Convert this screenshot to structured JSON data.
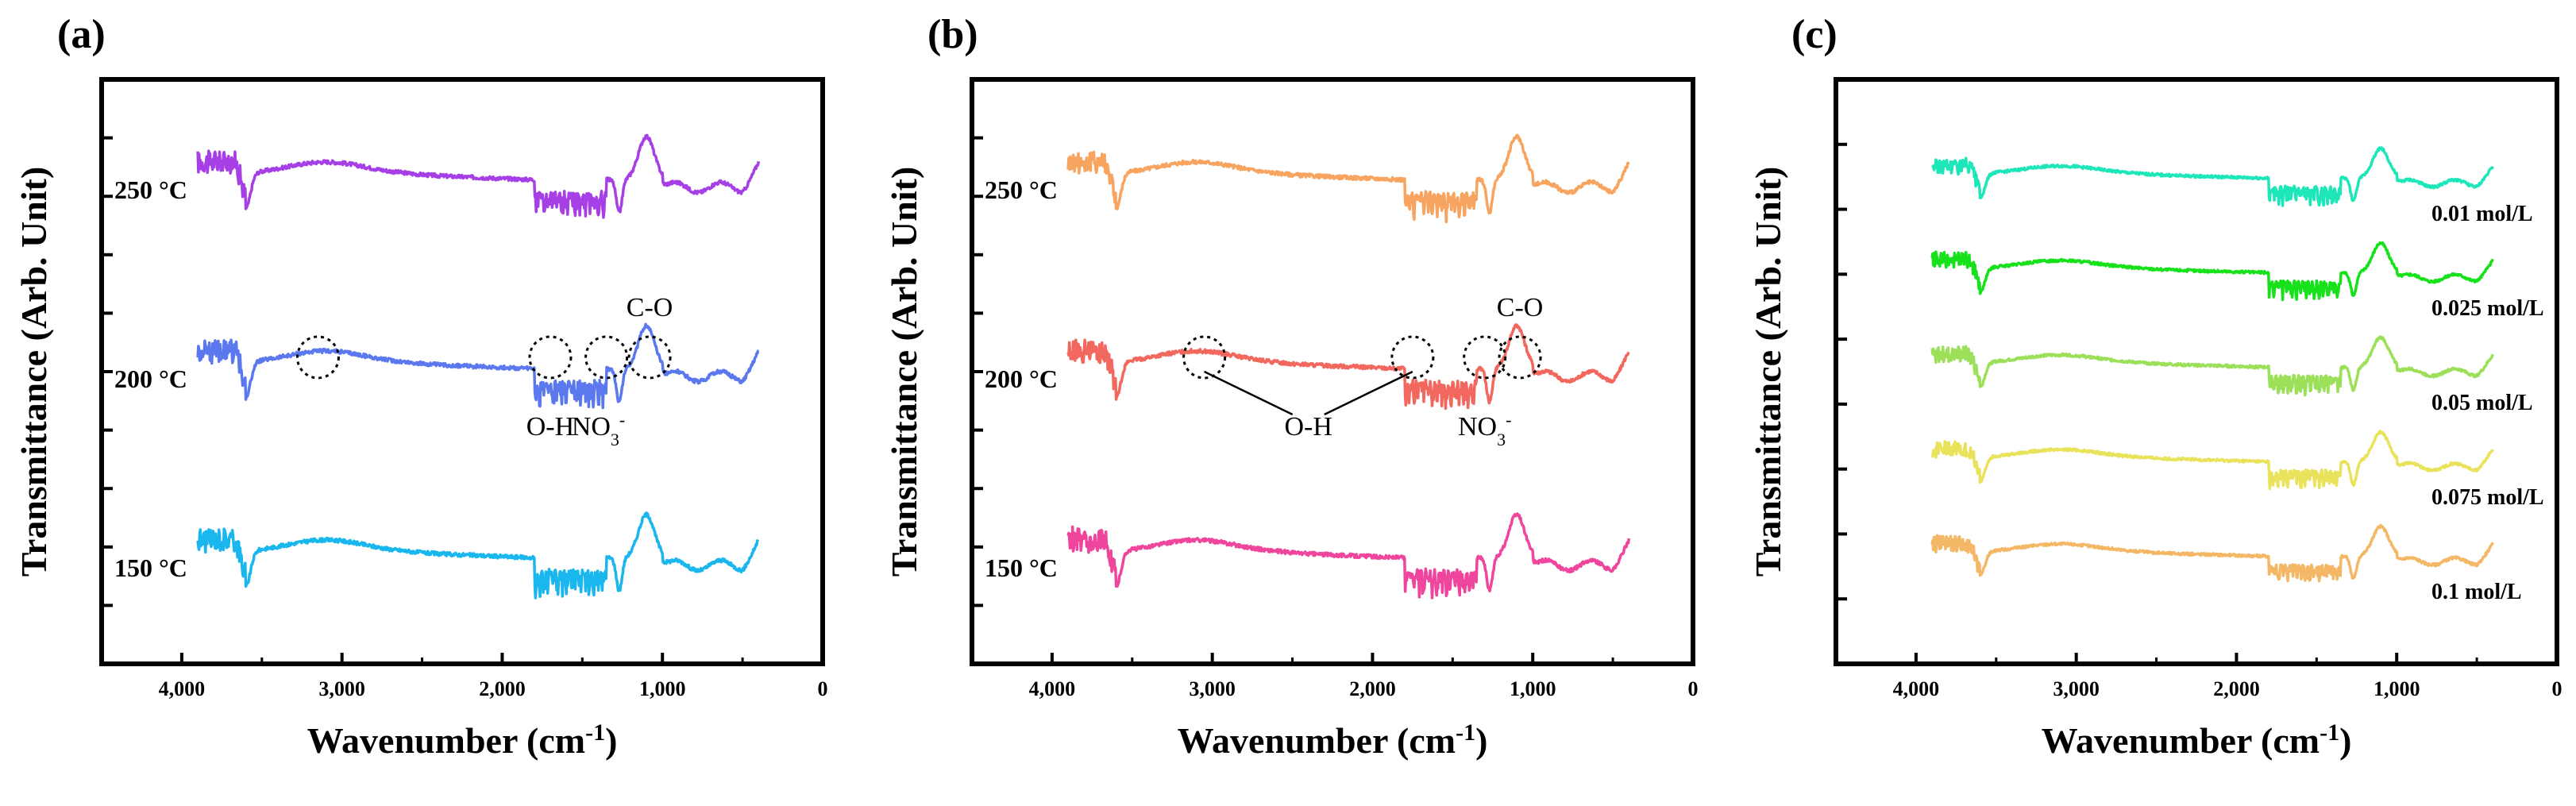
{
  "figure": {
    "description_labels": [
      "(a)",
      "(b)",
      "(c)"
    ]
  },
  "chart_data": [
    {
      "type": "line",
      "panel_label": "(a)",
      "xlabel": "Wavenumber (cm",
      "xlabel_sup": "-1",
      "xlabel_close": ")",
      "ylabel": "Transmittance (Arb. Unit)",
      "xlim": [
        4500,
        0
      ],
      "x_ticks": [
        4000,
        3000,
        2000,
        1000,
        0
      ],
      "x_tick_labels": [
        "4,000",
        "3,000",
        "2,000",
        "1,000",
        "0"
      ],
      "y_ticks_shown": true,
      "series": [
        {
          "name": "250 °C",
          "color": "#a63fe6",
          "offset": 2
        },
        {
          "name": "200 °C",
          "color": "#5b78ee",
          "offset": 1
        },
        {
          "name": "150 °C",
          "color": "#1ab7ee",
          "offset": 0
        }
      ],
      "annotations": [
        {
          "text": "C-O",
          "at_wavenumber": 1080,
          "series": "200 °C"
        },
        {
          "text": "O-H",
          "at_wavenumber": 1700,
          "series": "200 °C"
        },
        {
          "text": "NO",
          "sub": "3",
          "sup": "-",
          "at_wavenumber": 1400,
          "series": "200 °C"
        }
      ],
      "circled_bands": [
        {
          "wavenumber": 3150,
          "series": "200 °C"
        },
        {
          "wavenumber": 1700,
          "series": "200 °C"
        },
        {
          "wavenumber": 1350,
          "series": "200 °C"
        },
        {
          "wavenumber": 1080,
          "series": "200 °C"
        }
      ]
    },
    {
      "type": "line",
      "panel_label": "(b)",
      "xlabel": "Wavenumber (cm",
      "xlabel_sup": "-1",
      "xlabel_close": ")",
      "ylabel": "Transmittance (Arb. Unit)",
      "xlim": [
        4500,
        0
      ],
      "x_ticks": [
        4000,
        3000,
        2000,
        1000,
        0
      ],
      "x_tick_labels": [
        "4,000",
        "3,000",
        "2,000",
        "1,000",
        "0"
      ],
      "y_ticks_shown": true,
      "series": [
        {
          "name": "250 °C",
          "color": "#f7a460",
          "offset": 2
        },
        {
          "name": "200 °C",
          "color": "#f2675e",
          "offset": 1
        },
        {
          "name": "150 °C",
          "color": "#f0459c",
          "offset": 0
        }
      ],
      "annotations": [
        {
          "text": "C-O",
          "at_wavenumber": 1080,
          "series": "200 °C"
        },
        {
          "text": "O-H",
          "at_wavenumber": 2400,
          "series": "200 °C"
        },
        {
          "text": "NO",
          "sub": "3",
          "sup": "-",
          "at_wavenumber": 1300,
          "series": "200 °C"
        }
      ],
      "circled_bands": [
        {
          "wavenumber": 3050,
          "series": "200 °C"
        },
        {
          "wavenumber": 1750,
          "series": "200 °C"
        },
        {
          "wavenumber": 1300,
          "series": "200 °C"
        },
        {
          "wavenumber": 1080,
          "series": "200 °C"
        }
      ]
    },
    {
      "type": "line",
      "panel_label": "(c)",
      "xlabel": "Wavenumber (cm",
      "xlabel_sup": "-1",
      "xlabel_close": ")",
      "ylabel": "Transmittance (Arb. Unit)",
      "xlim": [
        4500,
        0
      ],
      "x_ticks": [
        4000,
        3000,
        2000,
        1000,
        0
      ],
      "x_tick_labels": [
        "4,000",
        "3,000",
        "2,000",
        "1,000",
        "0"
      ],
      "y_ticks_shown": true,
      "series": [
        {
          "name": "0.01 mol/L",
          "color": "#1de6b9",
          "offset": 4
        },
        {
          "name": "0.025 mol/L",
          "color": "#16e11a",
          "offset": 3
        },
        {
          "name": "0.05 mol/L",
          "color": "#9ce05a",
          "offset": 2
        },
        {
          "name": "0.075 mol/L",
          "color": "#e9e35c",
          "offset": 1
        },
        {
          "name": "0.1 mol/L",
          "color": "#f4b765",
          "offset": 0
        }
      ]
    }
  ]
}
